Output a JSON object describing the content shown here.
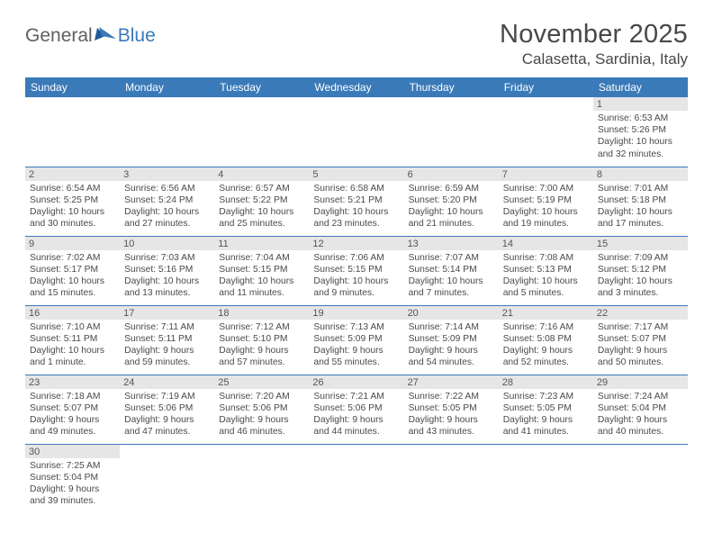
{
  "brand": {
    "part1": "General",
    "part2": "Blue"
  },
  "title": "November 2025",
  "location": "Calasetta, Sardinia, Italy",
  "header_bg": "#3a7ab8",
  "day_headers": [
    "Sunday",
    "Monday",
    "Tuesday",
    "Wednesday",
    "Thursday",
    "Friday",
    "Saturday"
  ],
  "weeks": [
    [
      {
        "blank": true
      },
      {
        "blank": true
      },
      {
        "blank": true
      },
      {
        "blank": true
      },
      {
        "blank": true
      },
      {
        "blank": true
      },
      {
        "day": "1",
        "sunrise": "Sunrise: 6:53 AM",
        "sunset": "Sunset: 5:26 PM",
        "daylight": "Daylight: 10 hours and 32 minutes."
      }
    ],
    [
      {
        "day": "2",
        "sunrise": "Sunrise: 6:54 AM",
        "sunset": "Sunset: 5:25 PM",
        "daylight": "Daylight: 10 hours and 30 minutes."
      },
      {
        "day": "3",
        "sunrise": "Sunrise: 6:56 AM",
        "sunset": "Sunset: 5:24 PM",
        "daylight": "Daylight: 10 hours and 27 minutes."
      },
      {
        "day": "4",
        "sunrise": "Sunrise: 6:57 AM",
        "sunset": "Sunset: 5:22 PM",
        "daylight": "Daylight: 10 hours and 25 minutes."
      },
      {
        "day": "5",
        "sunrise": "Sunrise: 6:58 AM",
        "sunset": "Sunset: 5:21 PM",
        "daylight": "Daylight: 10 hours and 23 minutes."
      },
      {
        "day": "6",
        "sunrise": "Sunrise: 6:59 AM",
        "sunset": "Sunset: 5:20 PM",
        "daylight": "Daylight: 10 hours and 21 minutes."
      },
      {
        "day": "7",
        "sunrise": "Sunrise: 7:00 AM",
        "sunset": "Sunset: 5:19 PM",
        "daylight": "Daylight: 10 hours and 19 minutes."
      },
      {
        "day": "8",
        "sunrise": "Sunrise: 7:01 AM",
        "sunset": "Sunset: 5:18 PM",
        "daylight": "Daylight: 10 hours and 17 minutes."
      }
    ],
    [
      {
        "day": "9",
        "sunrise": "Sunrise: 7:02 AM",
        "sunset": "Sunset: 5:17 PM",
        "daylight": "Daylight: 10 hours and 15 minutes."
      },
      {
        "day": "10",
        "sunrise": "Sunrise: 7:03 AM",
        "sunset": "Sunset: 5:16 PM",
        "daylight": "Daylight: 10 hours and 13 minutes."
      },
      {
        "day": "11",
        "sunrise": "Sunrise: 7:04 AM",
        "sunset": "Sunset: 5:15 PM",
        "daylight": "Daylight: 10 hours and 11 minutes."
      },
      {
        "day": "12",
        "sunrise": "Sunrise: 7:06 AM",
        "sunset": "Sunset: 5:15 PM",
        "daylight": "Daylight: 10 hours and 9 minutes."
      },
      {
        "day": "13",
        "sunrise": "Sunrise: 7:07 AM",
        "sunset": "Sunset: 5:14 PM",
        "daylight": "Daylight: 10 hours and 7 minutes."
      },
      {
        "day": "14",
        "sunrise": "Sunrise: 7:08 AM",
        "sunset": "Sunset: 5:13 PM",
        "daylight": "Daylight: 10 hours and 5 minutes."
      },
      {
        "day": "15",
        "sunrise": "Sunrise: 7:09 AM",
        "sunset": "Sunset: 5:12 PM",
        "daylight": "Daylight: 10 hours and 3 minutes."
      }
    ],
    [
      {
        "day": "16",
        "sunrise": "Sunrise: 7:10 AM",
        "sunset": "Sunset: 5:11 PM",
        "daylight": "Daylight: 10 hours and 1 minute."
      },
      {
        "day": "17",
        "sunrise": "Sunrise: 7:11 AM",
        "sunset": "Sunset: 5:11 PM",
        "daylight": "Daylight: 9 hours and 59 minutes."
      },
      {
        "day": "18",
        "sunrise": "Sunrise: 7:12 AM",
        "sunset": "Sunset: 5:10 PM",
        "daylight": "Daylight: 9 hours and 57 minutes."
      },
      {
        "day": "19",
        "sunrise": "Sunrise: 7:13 AM",
        "sunset": "Sunset: 5:09 PM",
        "daylight": "Daylight: 9 hours and 55 minutes."
      },
      {
        "day": "20",
        "sunrise": "Sunrise: 7:14 AM",
        "sunset": "Sunset: 5:09 PM",
        "daylight": "Daylight: 9 hours and 54 minutes."
      },
      {
        "day": "21",
        "sunrise": "Sunrise: 7:16 AM",
        "sunset": "Sunset: 5:08 PM",
        "daylight": "Daylight: 9 hours and 52 minutes."
      },
      {
        "day": "22",
        "sunrise": "Sunrise: 7:17 AM",
        "sunset": "Sunset: 5:07 PM",
        "daylight": "Daylight: 9 hours and 50 minutes."
      }
    ],
    [
      {
        "day": "23",
        "sunrise": "Sunrise: 7:18 AM",
        "sunset": "Sunset: 5:07 PM",
        "daylight": "Daylight: 9 hours and 49 minutes."
      },
      {
        "day": "24",
        "sunrise": "Sunrise: 7:19 AM",
        "sunset": "Sunset: 5:06 PM",
        "daylight": "Daylight: 9 hours and 47 minutes."
      },
      {
        "day": "25",
        "sunrise": "Sunrise: 7:20 AM",
        "sunset": "Sunset: 5:06 PM",
        "daylight": "Daylight: 9 hours and 46 minutes."
      },
      {
        "day": "26",
        "sunrise": "Sunrise: 7:21 AM",
        "sunset": "Sunset: 5:06 PM",
        "daylight": "Daylight: 9 hours and 44 minutes."
      },
      {
        "day": "27",
        "sunrise": "Sunrise: 7:22 AM",
        "sunset": "Sunset: 5:05 PM",
        "daylight": "Daylight: 9 hours and 43 minutes."
      },
      {
        "day": "28",
        "sunrise": "Sunrise: 7:23 AM",
        "sunset": "Sunset: 5:05 PM",
        "daylight": "Daylight: 9 hours and 41 minutes."
      },
      {
        "day": "29",
        "sunrise": "Sunrise: 7:24 AM",
        "sunset": "Sunset: 5:04 PM",
        "daylight": "Daylight: 9 hours and 40 minutes."
      }
    ],
    [
      {
        "day": "30",
        "sunrise": "Sunrise: 7:25 AM",
        "sunset": "Sunset: 5:04 PM",
        "daylight": "Daylight: 9 hours and 39 minutes."
      },
      {
        "blank": true
      },
      {
        "blank": true
      },
      {
        "blank": true
      },
      {
        "blank": true
      },
      {
        "blank": true
      },
      {
        "blank": true
      }
    ]
  ]
}
